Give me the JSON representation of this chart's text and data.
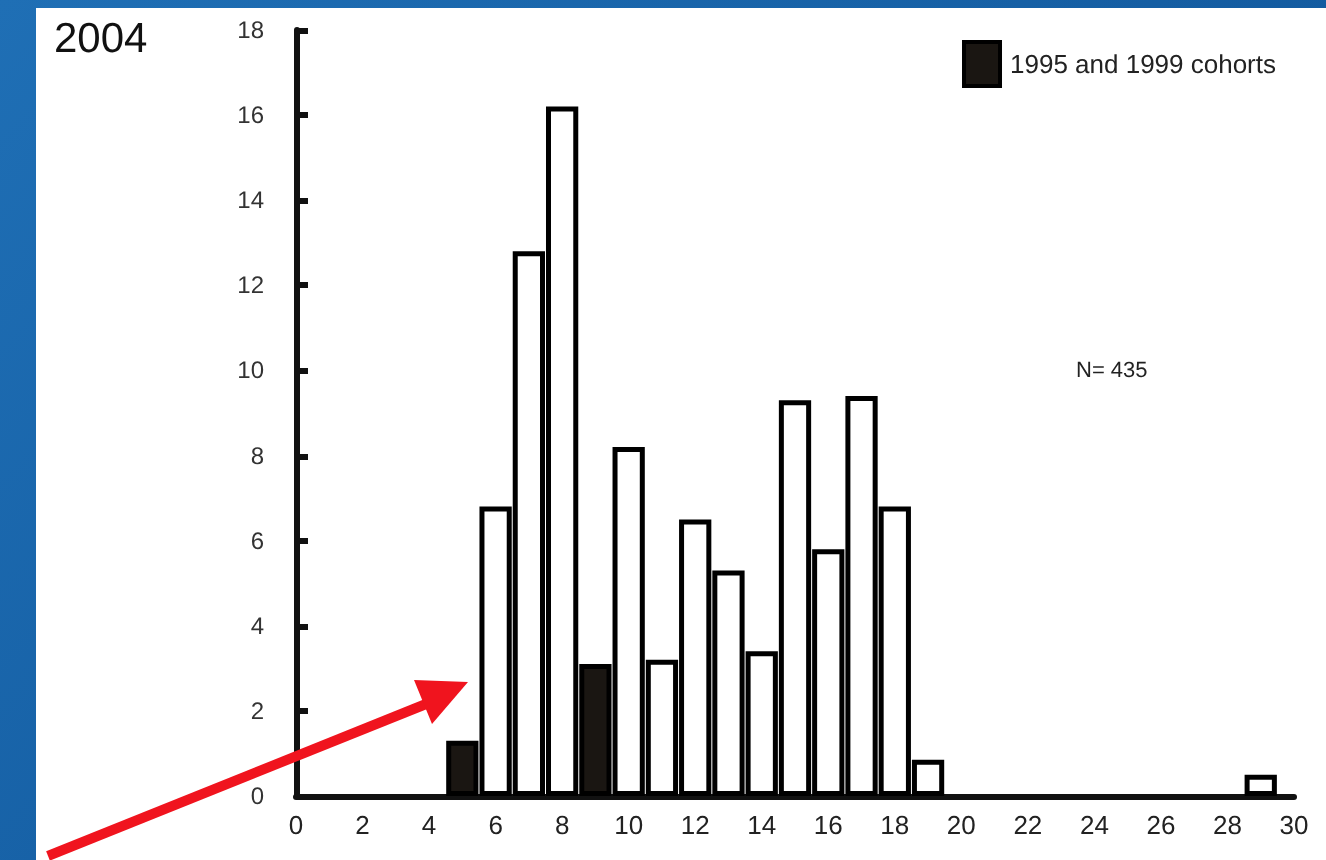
{
  "chart_data": {
    "type": "bar",
    "title": "2004",
    "xlim": [
      0,
      30
    ],
    "xticks": [
      0,
      2,
      4,
      6,
      8,
      10,
      12,
      14,
      16,
      18,
      20,
      22,
      24,
      26,
      28,
      30
    ],
    "x": [
      5,
      6,
      7,
      8,
      9,
      10,
      11,
      12,
      13,
      14,
      15,
      16,
      17,
      18,
      19,
      29
    ],
    "ylim": [
      0,
      18
    ],
    "yticks": [
      0,
      2,
      4,
      6,
      8,
      10,
      12,
      14,
      16,
      18
    ],
    "series": [
      {
        "name": "1995 and 1999 cohorts",
        "color": "#1a1612",
        "values": [
          1.3,
          null,
          null,
          null,
          3.1,
          null,
          null,
          null,
          null,
          null,
          null,
          null,
          null,
          null,
          null,
          null
        ]
      },
      {
        "color": "#ffffff",
        "values": [
          null,
          6.8,
          12.8,
          16.2,
          null,
          8.2,
          3.2,
          6.5,
          5.3,
          3.4,
          9.3,
          5.8,
          9.4,
          6.8,
          0.85,
          0.5
        ]
      }
    ],
    "annotations": [
      "N= 435"
    ],
    "legend": "top right",
    "grid": false
  }
}
